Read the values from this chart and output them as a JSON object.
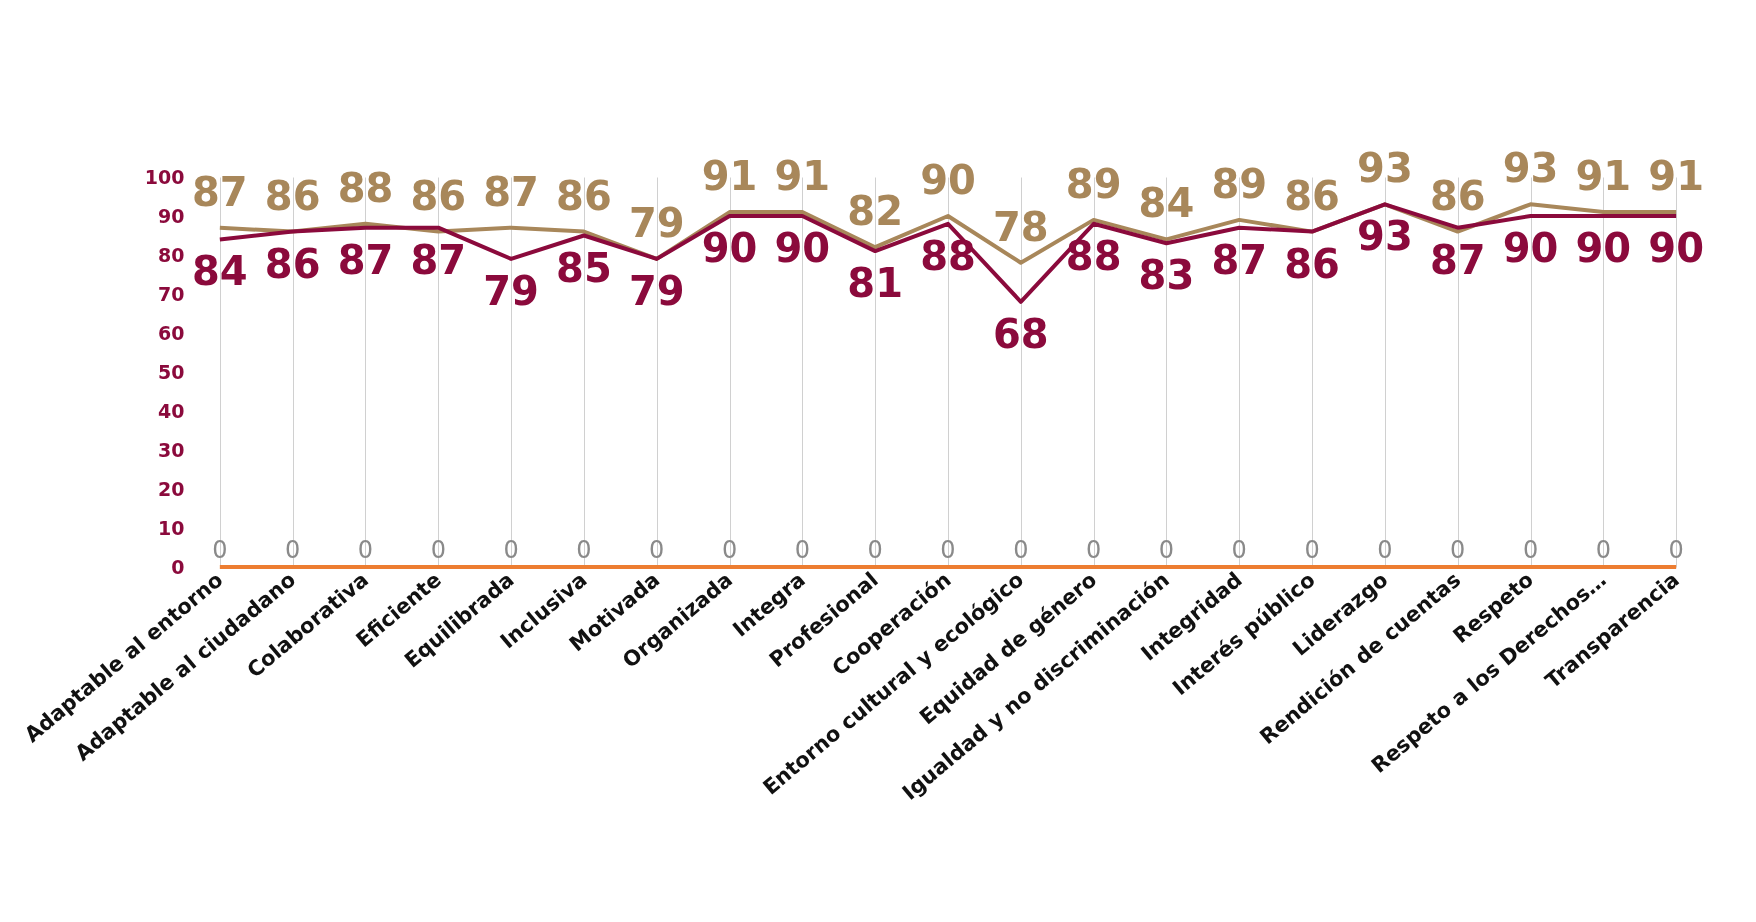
{
  "chart_data": {
    "type": "line",
    "categories": [
      "Adaptable al entorno",
      "Adaptable al ciudadano",
      "Colaborativa",
      "Eficiente",
      "Equilibrada",
      "Inclusiva",
      "Motivada",
      "Organizada",
      "Integra",
      "Profesional",
      "Cooperación",
      "Entorno cultural y ecológico",
      "Equidad de género",
      "Igualdad y no discriminación",
      "Integridad",
      "Interés público",
      "Liderazgo",
      "Rendición de cuentas",
      "Respeto",
      "Respeto a los Derechos…",
      "Transparencia"
    ],
    "series": [
      {
        "color": "#a8875a",
        "values": [
          87,
          86,
          88,
          86,
          87,
          86,
          79,
          91,
          91,
          82,
          90,
          78,
          89,
          84,
          89,
          86,
          93,
          86,
          93,
          91,
          91
        ]
      },
      {
        "color": "#8b0a3c",
        "values": [
          84,
          86,
          87,
          87,
          79,
          85,
          79,
          90,
          90,
          81,
          88,
          68,
          88,
          83,
          87,
          86,
          93,
          87,
          90,
          90,
          90
        ]
      },
      {
        "color": "#ed7d31",
        "values": [
          0,
          0,
          0,
          0,
          0,
          0,
          0,
          0,
          0,
          0,
          0,
          0,
          0,
          0,
          0,
          0,
          0,
          0,
          0,
          0,
          0
        ]
      }
    ],
    "ylim": [
      0,
      100
    ],
    "yticks": [
      0,
      10,
      20,
      30,
      40,
      50,
      60,
      70,
      80,
      90,
      100
    ],
    "grid": "x",
    "data_labels": true
  }
}
